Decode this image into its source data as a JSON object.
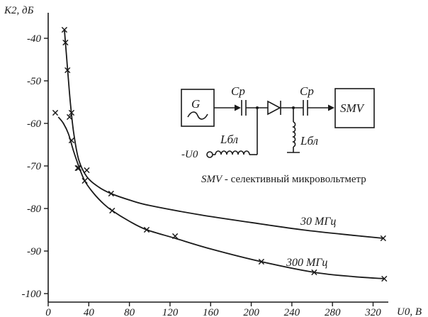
{
  "chart_data": {
    "type": "line",
    "ylabel": "K2, дБ",
    "xlabel": "U0, B",
    "xlim": [
      0,
      335
    ],
    "ylim": [
      -102,
      -34
    ],
    "x_ticks": [
      0,
      40,
      80,
      120,
      160,
      200,
      240,
      280,
      320
    ],
    "y_ticks": [
      -40,
      -50,
      -60,
      -70,
      -80,
      -90,
      -100
    ],
    "x_tick_labels": [
      "0",
      "40",
      "80",
      "120",
      "160",
      "200",
      "240",
      "280",
      "320"
    ],
    "y_tick_labels": [
      "-40",
      "-50",
      "-60",
      "-70",
      "-80",
      "-90",
      "-100"
    ],
    "series": [
      {
        "name": "30 МГц",
        "x": [
          16,
          17,
          19,
          21,
          23,
          30,
          38,
          62,
          330
        ],
        "y": [
          -38,
          -41,
          -47.5,
          -58.5,
          -57.5,
          -70.5,
          -71,
          -76.5,
          -87
        ],
        "curve_x": [
          16,
          18,
          20,
          22,
          25,
          30,
          38,
          50,
          62,
          80,
          100,
          150,
          200,
          250,
          300,
          330
        ],
        "curve_y": [
          -38,
          -44,
          -50,
          -55.5,
          -62,
          -68.5,
          -72.5,
          -75,
          -76.5,
          -78,
          -79.3,
          -81.5,
          -83.3,
          -85,
          -86.3,
          -87
        ]
      },
      {
        "name": "300 МГц",
        "x": [
          7,
          23,
          29,
          36,
          63,
          97,
          125,
          210,
          262,
          331
        ],
        "y": [
          -57.5,
          -64,
          -70.5,
          -73.5,
          -80.5,
          -85,
          -86.5,
          -92.5,
          -95,
          -96.5
        ],
        "curve_x": [
          10,
          15,
          20,
          25,
          30,
          36,
          45,
          55,
          63,
          80,
          97,
          125,
          160,
          210,
          262,
          300,
          331
        ],
        "curve_y": [
          -58.5,
          -60,
          -62.5,
          -66.5,
          -70,
          -73.5,
          -76.5,
          -79,
          -80.5,
          -83,
          -85,
          -87,
          -89.5,
          -92.5,
          -95,
          -96,
          -96.5
        ]
      }
    ],
    "grid": false,
    "legend": "inline labels near curves"
  },
  "schematic": {
    "generator_label": "G",
    "capacitor_label_1": "Cp",
    "capacitor_label_2": "Cp",
    "inductor_label_1": "Lбл",
    "inductor_label_2": "Lбл",
    "bias_label": "-U0",
    "meter_label": "SMV",
    "caption_abbr": "SMV",
    "caption_text": " - селективный микровольтметр"
  }
}
